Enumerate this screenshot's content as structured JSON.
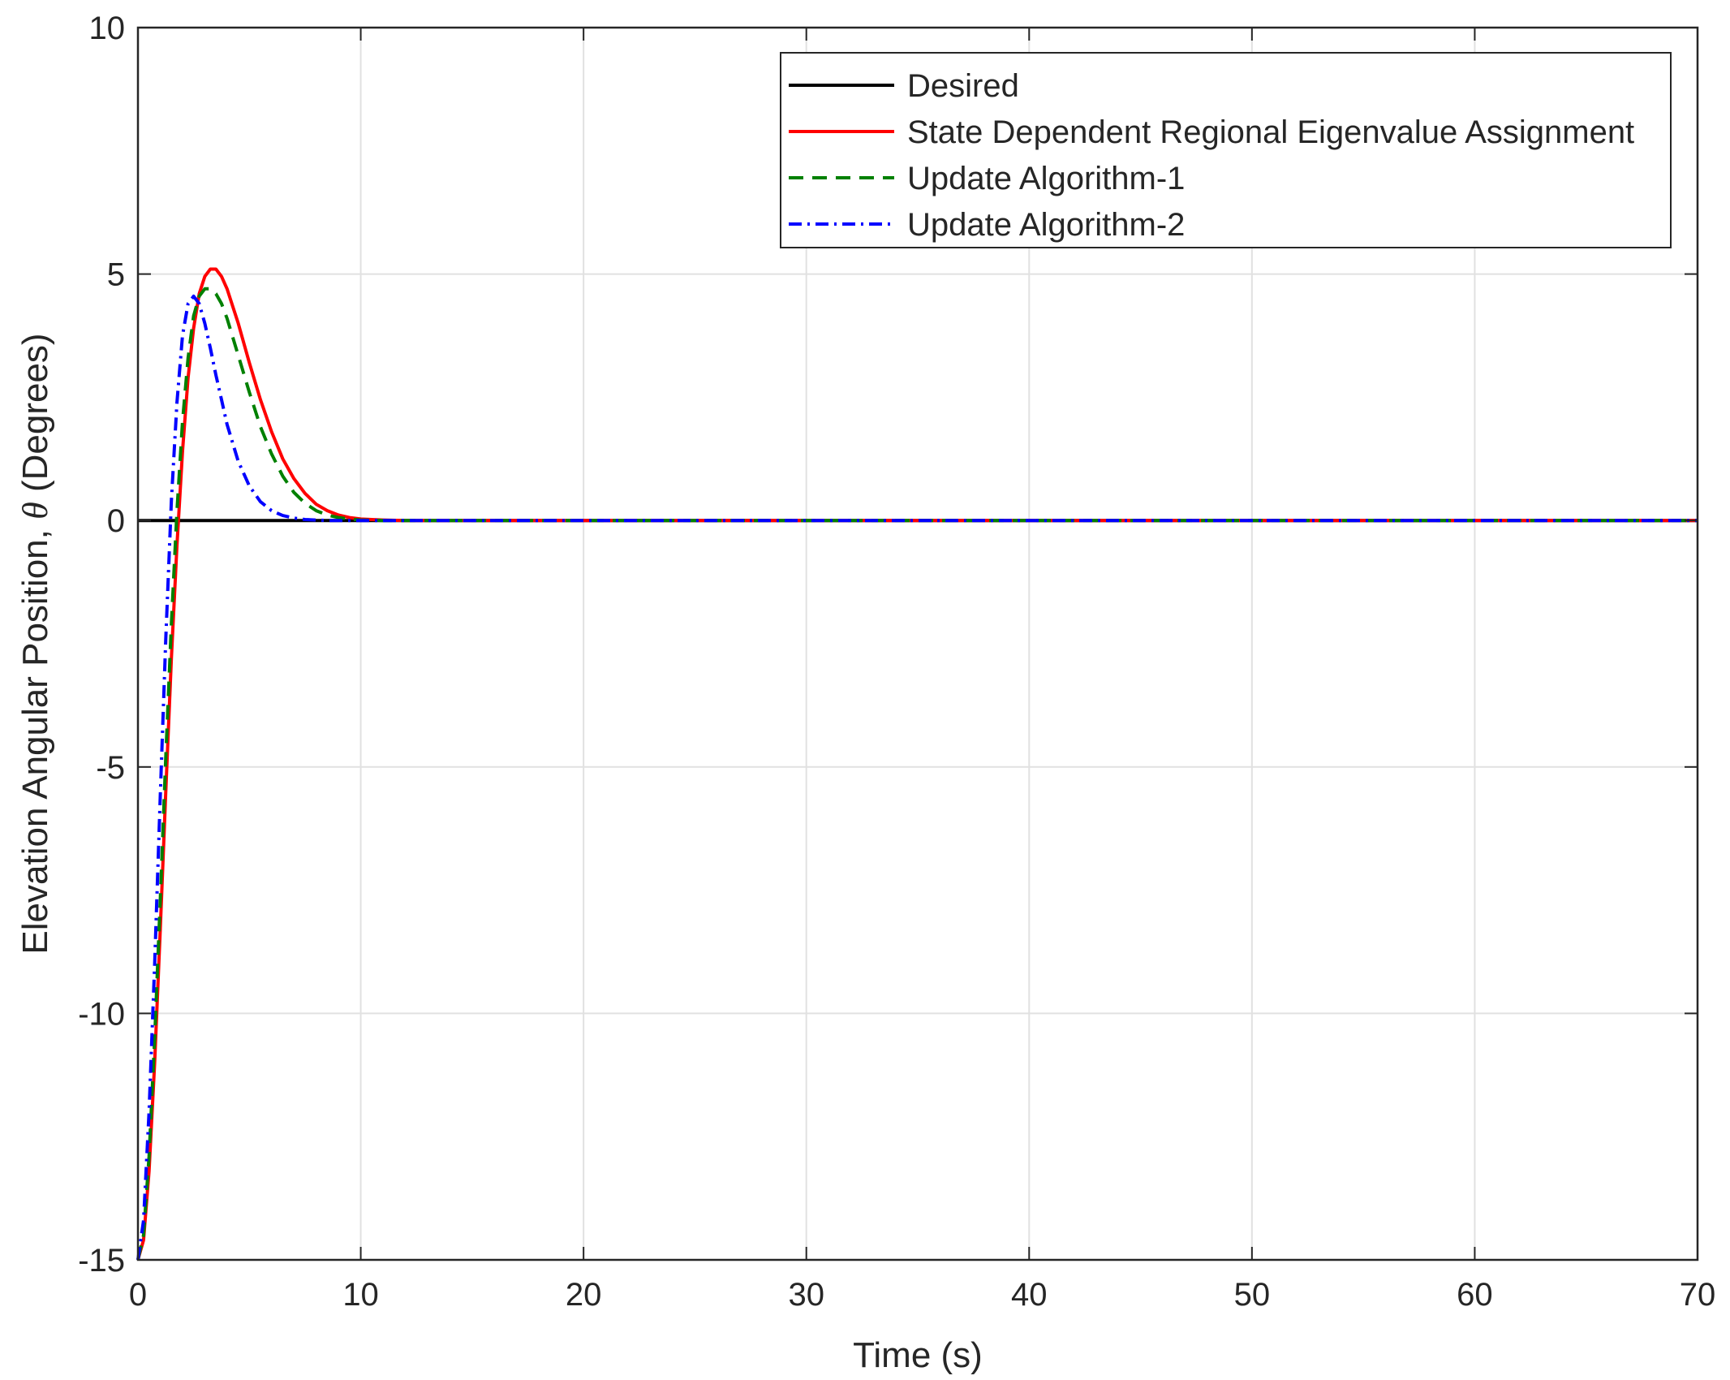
{
  "chart_data": {
    "type": "line",
    "xlabel": "Time (s)",
    "ylabel_main": "Elevation Angular Position,",
    "ylabel_symbol": "θ",
    "ylabel_unit": "(Degrees)",
    "xlim": [
      0,
      70
    ],
    "ylim": [
      -15,
      10
    ],
    "xticks": [
      0,
      10,
      20,
      30,
      40,
      50,
      60,
      70
    ],
    "yticks": [
      -15,
      -10,
      -5,
      0,
      5,
      10
    ],
    "grid": true,
    "legend_position": "top-right",
    "series": [
      {
        "name": "Desired",
        "color": "#000000",
        "style": "solid",
        "x": [
          0,
          70
        ],
        "y": [
          0,
          0
        ]
      },
      {
        "name": "State Dependent Regional Eigenvalue Assignment",
        "color": "#ff0000",
        "style": "solid",
        "x": [
          0,
          0.25,
          0.5,
          0.75,
          1.0,
          1.25,
          1.5,
          1.75,
          2.0,
          2.25,
          2.5,
          2.75,
          3.0,
          3.25,
          3.5,
          3.75,
          4.0,
          4.5,
          5.0,
          5.5,
          6.0,
          6.5,
          7.0,
          7.5,
          8.0,
          8.5,
          9.0,
          9.5,
          10.0,
          11.0,
          12.0,
          15.0,
          20.0,
          30.0,
          40.0,
          50.0,
          60.0,
          70.0
        ],
        "y": [
          -15,
          -14.6,
          -13.2,
          -11.0,
          -8.3,
          -5.5,
          -2.8,
          -0.5,
          1.4,
          2.9,
          3.9,
          4.6,
          4.95,
          5.1,
          5.1,
          4.95,
          4.7,
          4.0,
          3.2,
          2.45,
          1.8,
          1.25,
          0.85,
          0.55,
          0.33,
          0.2,
          0.11,
          0.06,
          0.03,
          0.01,
          0,
          0,
          0,
          0,
          0,
          0,
          0,
          0
        ]
      },
      {
        "name": "Update Algorithm-1",
        "color": "#008000",
        "style": "dashed",
        "x": [
          0,
          0.25,
          0.5,
          0.75,
          1.0,
          1.25,
          1.5,
          1.75,
          2.0,
          2.25,
          2.5,
          2.75,
          3.0,
          3.25,
          3.5,
          3.75,
          4.0,
          4.5,
          5.0,
          5.5,
          6.0,
          6.5,
          7.0,
          7.5,
          8.0,
          8.5,
          9.0,
          9.5,
          10.0,
          11.0,
          12.0,
          15.0,
          20.0,
          30.0,
          40.0,
          50.0,
          60.0,
          70.0
        ],
        "y": [
          -15,
          -14.5,
          -12.9,
          -10.5,
          -7.7,
          -4.8,
          -2.1,
          0.2,
          2.0,
          3.3,
          4.15,
          4.55,
          4.7,
          4.7,
          4.6,
          4.4,
          4.1,
          3.35,
          2.6,
          1.9,
          1.35,
          0.9,
          0.57,
          0.35,
          0.2,
          0.11,
          0.06,
          0.03,
          0.01,
          0,
          0,
          0,
          0,
          0,
          0,
          0,
          0,
          0
        ]
      },
      {
        "name": "Update Algorithm-2",
        "color": "#0000ff",
        "style": "dashdot",
        "x": [
          0,
          0.25,
          0.5,
          0.75,
          1.0,
          1.25,
          1.5,
          1.75,
          2.0,
          2.25,
          2.5,
          2.75,
          3.0,
          3.25,
          3.5,
          3.75,
          4.0,
          4.5,
          5.0,
          5.5,
          6.0,
          6.5,
          7.0,
          7.5,
          8.0,
          8.5,
          9.0,
          9.5,
          10.0,
          11.0,
          12.0,
          15.0,
          20.0,
          30.0,
          40.0,
          50.0,
          60.0,
          70.0
        ],
        "y": [
          -15,
          -14.2,
          -12.0,
          -9.0,
          -5.6,
          -2.4,
          0.4,
          2.4,
          3.75,
          4.4,
          4.55,
          4.4,
          4.0,
          3.5,
          2.95,
          2.45,
          1.95,
          1.2,
          0.7,
          0.38,
          0.2,
          0.1,
          0.05,
          0.02,
          0.01,
          0,
          0,
          0,
          0,
          0,
          0,
          0,
          0,
          0,
          0,
          0,
          0,
          0
        ]
      }
    ]
  }
}
